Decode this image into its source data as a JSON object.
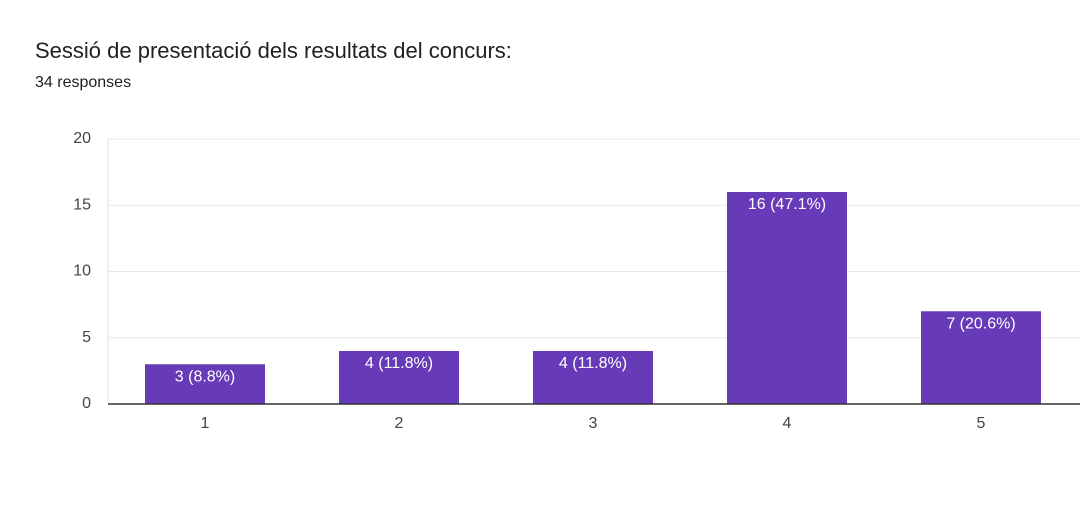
{
  "chart_data": {
    "type": "bar",
    "title": "Sessió de presentació dels resultats del concurs:",
    "subtitle": "34 responses",
    "categories": [
      "1",
      "2",
      "3",
      "4",
      "5"
    ],
    "values": [
      3,
      4,
      4,
      16,
      7
    ],
    "value_labels": [
      "3 (8.8%)",
      "4 (11.8%)",
      "4 (11.8%)",
      "16 (47.1%)",
      "7 (20.6%)"
    ],
    "color": "#673ab7",
    "ylim": [
      0,
      20
    ],
    "yticks": [
      0,
      5,
      10,
      15,
      20
    ],
    "grid": true
  }
}
